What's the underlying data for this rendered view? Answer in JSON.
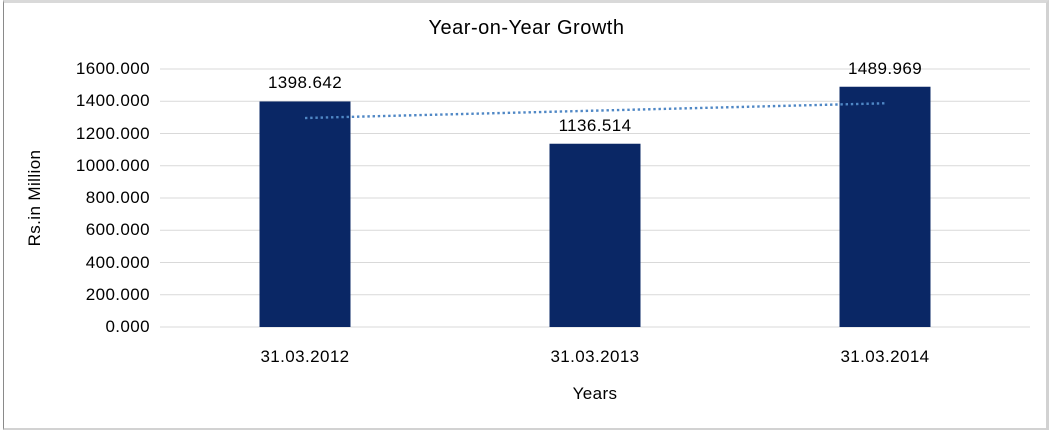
{
  "chart_data": {
    "type": "bar",
    "title": "Year-on-Year Growth",
    "xlabel": "Years",
    "ylabel": "Rs.in Million",
    "categories": [
      "31.03.2012",
      "31.03.2013",
      "31.03.2014"
    ],
    "values": [
      1398.642,
      1136.514,
      1489.969
    ],
    "data_labels": [
      "1398.642",
      "1136.514",
      "1489.969"
    ],
    "ylim": [
      0,
      1600
    ],
    "ytick_step": 200,
    "ytick_labels": [
      "0.000",
      "200.000",
      "400.000",
      "600.000",
      "800.000",
      "1000.000",
      "1200.000",
      "1400.000",
      "1600.000"
    ],
    "grid": true,
    "legend_position": "none",
    "trendline": {
      "type": "linear",
      "style": "dotted",
      "color": "#4f87c5"
    },
    "colors": {
      "bar": "#0a2765",
      "gridline": "#d9d9d9",
      "trendline": "#4f87c5",
      "text": "#000000",
      "background": "#ffffff",
      "frame_border": "#d2d2d2"
    }
  }
}
